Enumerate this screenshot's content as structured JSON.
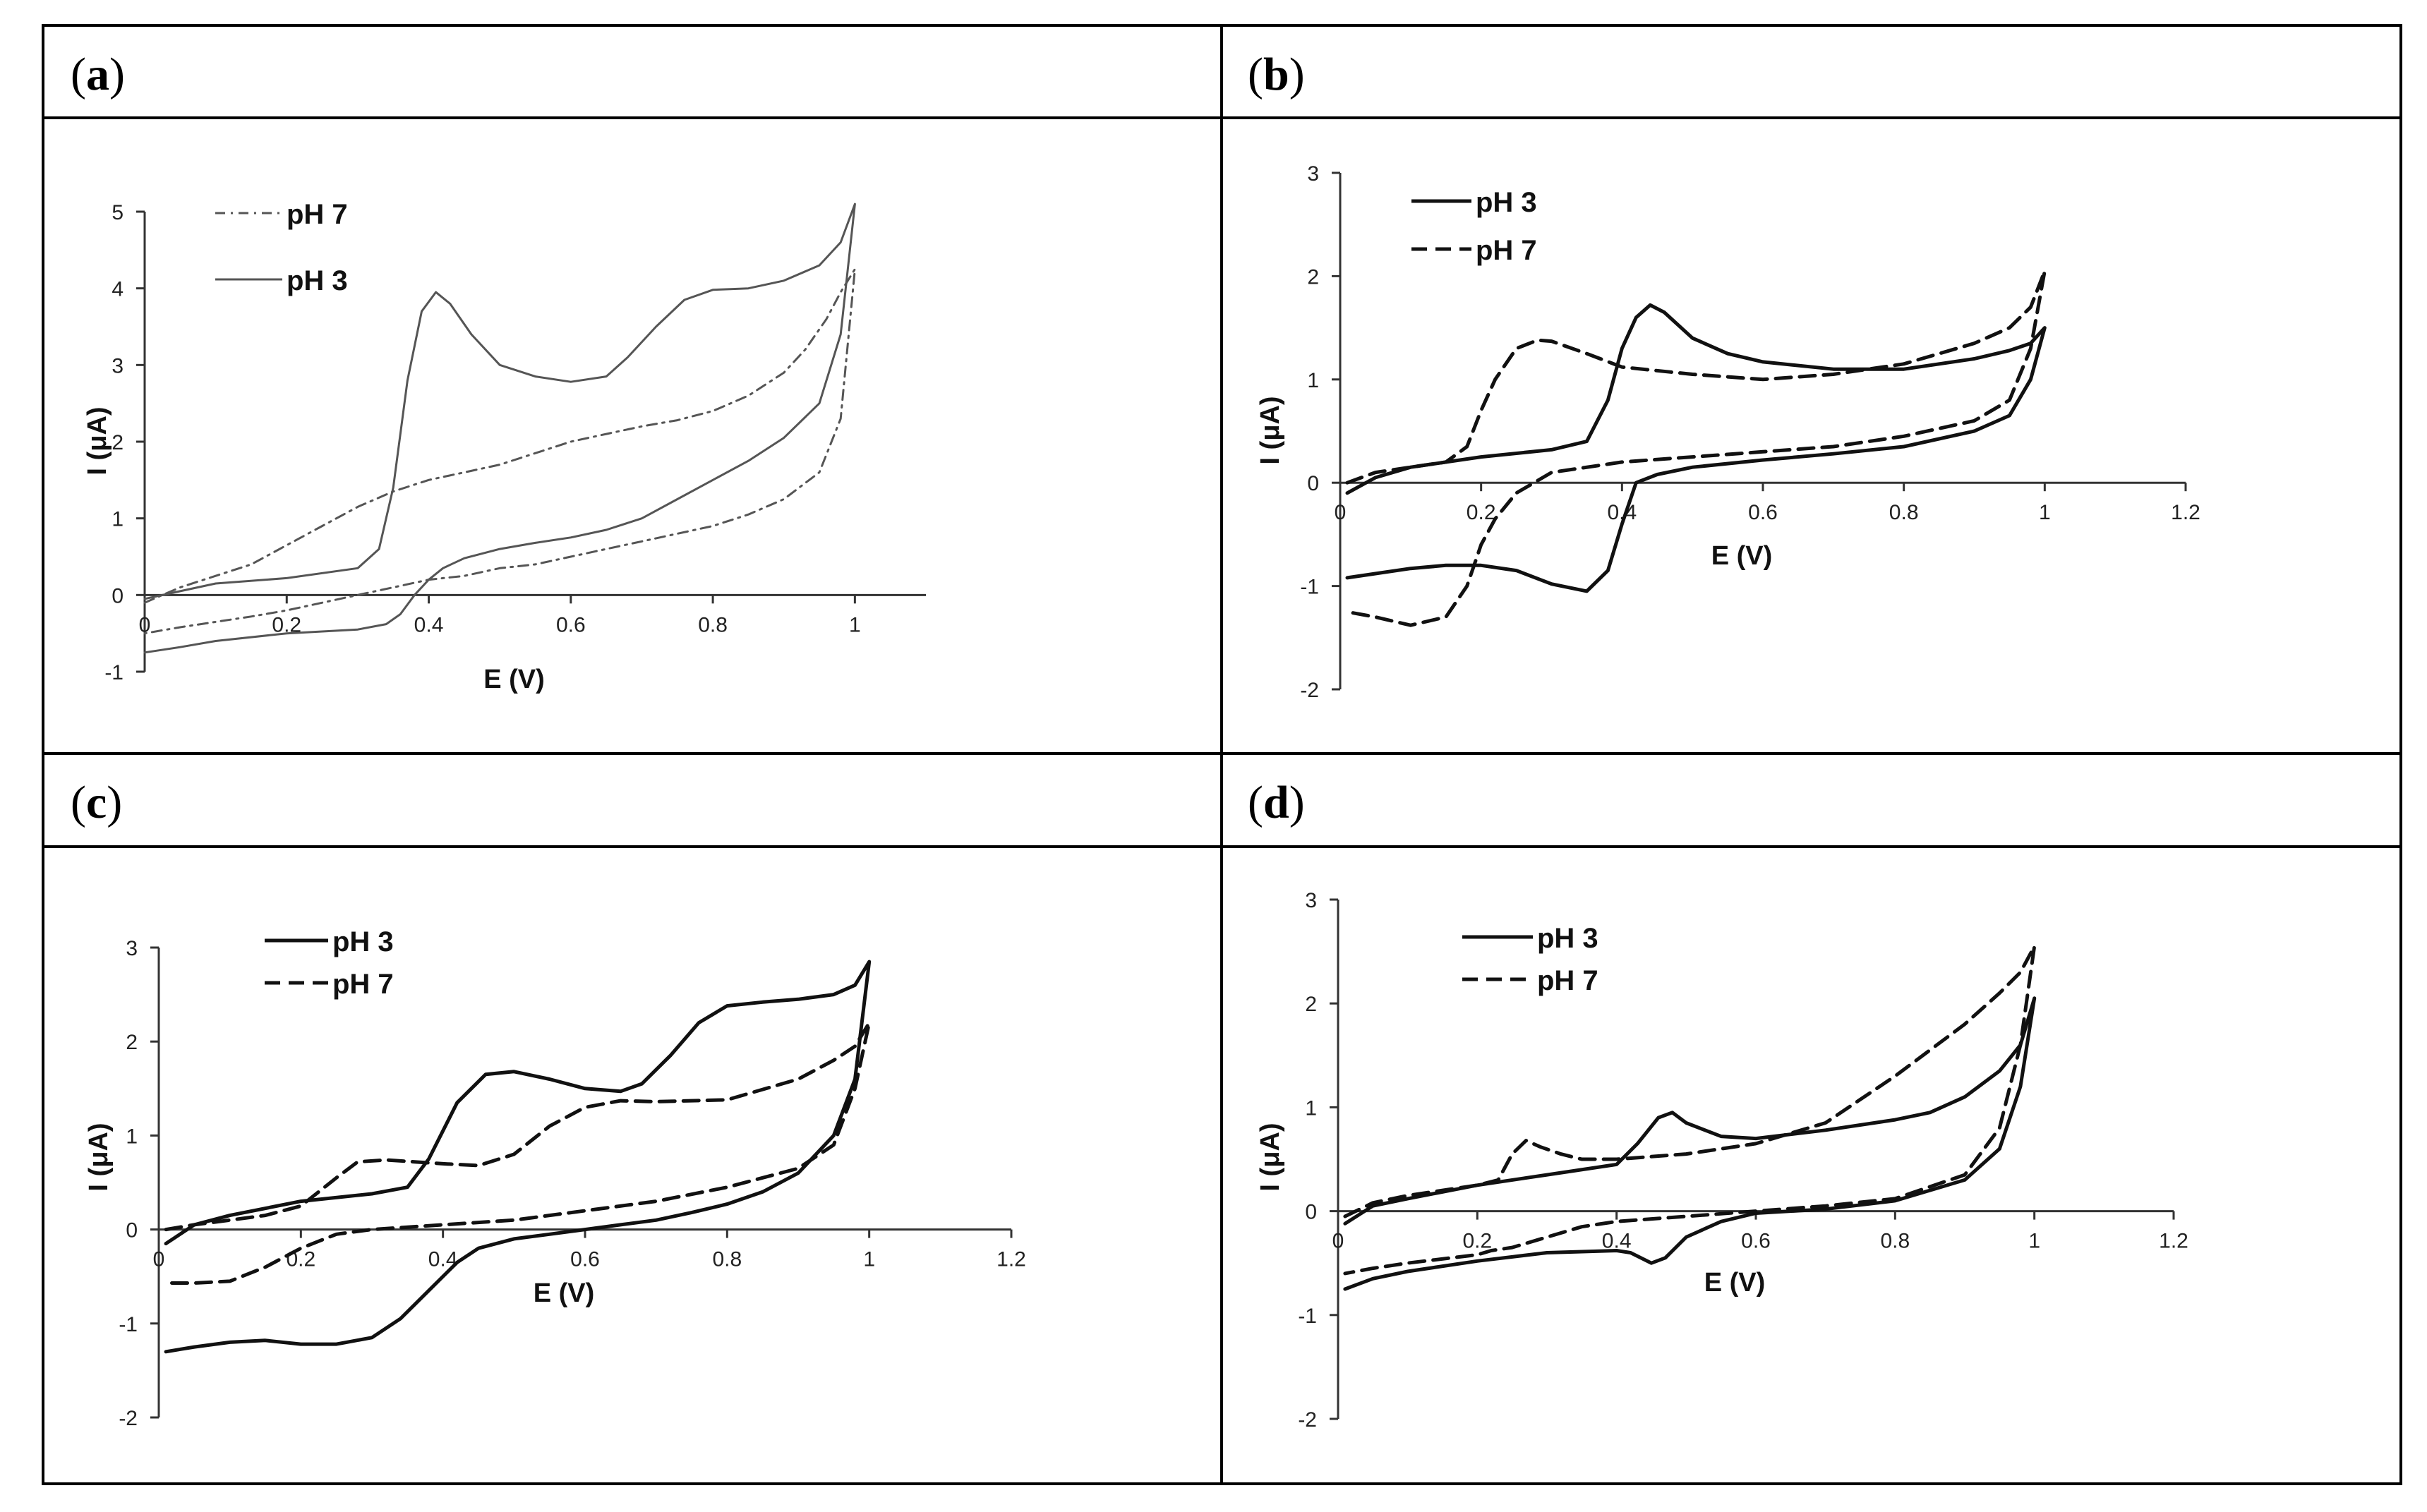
{
  "figure": {
    "panel_labels": [
      "a",
      "b",
      "c",
      "d"
    ]
  },
  "chart_data": [
    {
      "panel": "a",
      "type": "line",
      "title": "",
      "xlabel": "E (V)",
      "ylabel": "I (μA)",
      "xlim": [
        0,
        1.1
      ],
      "ylim": [
        -1,
        5
      ],
      "xticks": [
        0,
        0.2,
        0.4,
        0.6,
        0.8,
        1
      ],
      "xtick_labels": [
        "0",
        "0.2",
        "0.4",
        "0.6",
        "0.8",
        "1"
      ],
      "yticks": [
        -1,
        0,
        1,
        2,
        3,
        4,
        5
      ],
      "ytick_labels": [
        "-1",
        "0",
        "1",
        "2",
        "3",
        "4",
        "5"
      ],
      "axis_crosses_y": 0,
      "legend_position": "top-left",
      "legend_style": "plain",
      "series": [
        {
          "name": "pH 7",
          "style": "dashdot",
          "color": "#555555",
          "x": [
            0,
            0.05,
            0.1,
            0.15,
            0.2,
            0.25,
            0.3,
            0.35,
            0.4,
            0.45,
            0.5,
            0.55,
            0.6,
            0.65,
            0.7,
            0.75,
            0.8,
            0.85,
            0.9,
            0.93,
            0.96,
            0.98,
            1,
            0.98,
            0.95,
            0.9,
            0.85,
            0.8,
            0.75,
            0.7,
            0.65,
            0.6,
            0.55,
            0.5,
            0.45,
            0.4,
            0.35,
            0.3,
            0.25,
            0.2,
            0.15,
            0.1,
            0.05,
            0
          ],
          "y": [
            -0.1,
            0.1,
            0.25,
            0.4,
            0.65,
            0.9,
            1.15,
            1.35,
            1.5,
            1.6,
            1.7,
            1.85,
            2.0,
            2.1,
            2.2,
            2.28,
            2.4,
            2.6,
            2.9,
            3.2,
            3.6,
            3.95,
            4.25,
            2.3,
            1.6,
            1.25,
            1.05,
            0.9,
            0.8,
            0.7,
            0.6,
            0.5,
            0.4,
            0.35,
            0.25,
            0.2,
            0.1,
            0.0,
            -0.1,
            -0.2,
            -0.28,
            -0.35,
            -0.42,
            -0.5
          ]
        },
        {
          "name": "pH 3",
          "style": "solid",
          "color": "#555555",
          "x": [
            0,
            0.05,
            0.1,
            0.2,
            0.3,
            0.33,
            0.35,
            0.37,
            0.39,
            0.41,
            0.43,
            0.46,
            0.5,
            0.55,
            0.6,
            0.65,
            0.68,
            0.72,
            0.76,
            0.8,
            0.85,
            0.9,
            0.95,
            0.98,
            1,
            0.98,
            0.95,
            0.9,
            0.85,
            0.8,
            0.75,
            0.7,
            0.65,
            0.6,
            0.55,
            0.5,
            0.45,
            0.42,
            0.4,
            0.38,
            0.36,
            0.34,
            0.3,
            0.2,
            0.1,
            0.05,
            0
          ],
          "y": [
            -0.05,
            0.05,
            0.15,
            0.22,
            0.35,
            0.6,
            1.4,
            2.8,
            3.7,
            3.95,
            3.8,
            3.4,
            3.0,
            2.85,
            2.78,
            2.85,
            3.1,
            3.5,
            3.85,
            3.98,
            4.0,
            4.1,
            4.3,
            4.6,
            5.1,
            3.4,
            2.5,
            2.05,
            1.75,
            1.5,
            1.25,
            1.0,
            0.85,
            0.75,
            0.68,
            0.6,
            0.48,
            0.35,
            0.2,
            0.0,
            -0.25,
            -0.38,
            -0.45,
            -0.5,
            -0.6,
            -0.68,
            -0.75
          ]
        }
      ]
    },
    {
      "panel": "b",
      "type": "line",
      "title": "",
      "xlabel": "E (V)",
      "ylabel": "I (μA)",
      "xlim": [
        0,
        1.2
      ],
      "ylim": [
        -2,
        3
      ],
      "xticks": [
        0,
        0.2,
        0.4,
        0.6,
        0.8,
        1,
        1.2
      ],
      "xtick_labels": [
        "0",
        "0.2",
        "0.4",
        "0.6",
        "0.8",
        "1",
        "1.2"
      ],
      "yticks": [
        -2,
        -1,
        0,
        1,
        2,
        3
      ],
      "ytick_labels": [
        "-2",
        "-1",
        "0",
        "1",
        "2",
        "3"
      ],
      "axis_crosses_y": 0,
      "legend_position": "top-left",
      "legend_style": "bold",
      "series": [
        {
          "name": "pH 3",
          "style": "solid",
          "color": "#111111",
          "x": [
            0.01,
            0.05,
            0.1,
            0.2,
            0.3,
            0.35,
            0.38,
            0.4,
            0.42,
            0.44,
            0.46,
            0.5,
            0.55,
            0.6,
            0.7,
            0.8,
            0.9,
            0.95,
            0.98,
            1.0,
            0.98,
            0.95,
            0.9,
            0.8,
            0.7,
            0.6,
            0.5,
            0.45,
            0.42,
            0.4,
            0.38,
            0.35,
            0.3,
            0.25,
            0.2,
            0.15,
            0.1,
            0.05,
            0.01
          ],
          "y": [
            -0.1,
            0.05,
            0.15,
            0.25,
            0.32,
            0.4,
            0.8,
            1.3,
            1.6,
            1.72,
            1.65,
            1.4,
            1.25,
            1.17,
            1.1,
            1.1,
            1.2,
            1.28,
            1.35,
            1.5,
            1.0,
            0.65,
            0.5,
            0.35,
            0.28,
            0.22,
            0.15,
            0.08,
            0.0,
            -0.4,
            -0.85,
            -1.05,
            -0.98,
            -0.85,
            -0.8,
            -0.8,
            -0.83,
            -0.88,
            -0.92
          ]
        },
        {
          "name": "pH 7",
          "style": "dashed",
          "color": "#111111",
          "x": [
            0.01,
            0.05,
            0.1,
            0.15,
            0.18,
            0.2,
            0.22,
            0.25,
            0.28,
            0.3,
            0.35,
            0.4,
            0.5,
            0.6,
            0.7,
            0.8,
            0.9,
            0.95,
            0.98,
            1.0,
            0.98,
            0.95,
            0.9,
            0.8,
            0.7,
            0.6,
            0.5,
            0.4,
            0.3,
            0.25,
            0.22,
            0.2,
            0.18,
            0.15,
            0.1,
            0.05,
            0.01
          ],
          "y": [
            0.0,
            0.1,
            0.15,
            0.2,
            0.35,
            0.7,
            1.0,
            1.3,
            1.38,
            1.37,
            1.25,
            1.12,
            1.05,
            1.0,
            1.05,
            1.15,
            1.35,
            1.5,
            1.7,
            2.05,
            1.3,
            0.8,
            0.6,
            0.45,
            0.35,
            0.3,
            0.25,
            0.2,
            0.1,
            -0.1,
            -0.35,
            -0.6,
            -1.0,
            -1.3,
            -1.38,
            -1.3,
            -1.25
          ]
        }
      ]
    },
    {
      "panel": "c",
      "type": "line",
      "title": "",
      "xlabel": "E (V)",
      "ylabel": "I (μA)",
      "xlim": [
        0,
        1.2
      ],
      "ylim": [
        -2,
        3
      ],
      "xticks": [
        0,
        0.2,
        0.4,
        0.6,
        0.8,
        1,
        1.2
      ],
      "xtick_labels": [
        "0",
        "0.2",
        "0.4",
        "0.6",
        "0.8",
        "1",
        "1.2"
      ],
      "yticks": [
        -2,
        -1,
        0,
        1,
        2,
        3
      ],
      "ytick_labels": [
        "-2",
        "-1",
        "0",
        "1",
        "2",
        "3"
      ],
      "axis_crosses_y": 0,
      "legend_position": "top-left",
      "legend_style": "bold",
      "series": [
        {
          "name": "pH 3",
          "style": "solid",
          "color": "#111111",
          "x": [
            0.01,
            0.05,
            0.1,
            0.2,
            0.3,
            0.35,
            0.38,
            0.42,
            0.46,
            0.5,
            0.55,
            0.6,
            0.65,
            0.68,
            0.72,
            0.76,
            0.8,
            0.85,
            0.9,
            0.95,
            0.98,
            1.0,
            0.98,
            0.95,
            0.9,
            0.85,
            0.8,
            0.75,
            0.7,
            0.65,
            0.6,
            0.55,
            0.5,
            0.45,
            0.42,
            0.38,
            0.34,
            0.3,
            0.25,
            0.2,
            0.15,
            0.1,
            0.05,
            0.01
          ],
          "y": [
            -0.15,
            0.05,
            0.15,
            0.3,
            0.38,
            0.45,
            0.75,
            1.35,
            1.65,
            1.68,
            1.6,
            1.5,
            1.47,
            1.55,
            1.85,
            2.2,
            2.38,
            2.42,
            2.45,
            2.5,
            2.6,
            2.85,
            1.6,
            1.0,
            0.6,
            0.4,
            0.27,
            0.18,
            0.1,
            0.05,
            0.0,
            -0.05,
            -0.1,
            -0.2,
            -0.35,
            -0.65,
            -0.95,
            -1.15,
            -1.22,
            -1.22,
            -1.18,
            -1.2,
            -1.25,
            -1.3
          ]
        },
        {
          "name": "pH 7",
          "style": "dashed",
          "color": "#111111",
          "x": [
            0.01,
            0.05,
            0.1,
            0.15,
            0.2,
            0.25,
            0.28,
            0.32,
            0.36,
            0.4,
            0.45,
            0.5,
            0.55,
            0.6,
            0.65,
            0.7,
            0.8,
            0.9,
            0.95,
            0.98,
            1.0,
            0.98,
            0.95,
            0.9,
            0.8,
            0.7,
            0.6,
            0.5,
            0.4,
            0.3,
            0.25,
            0.2,
            0.15,
            0.1,
            0.05,
            0.01
          ],
          "y": [
            0.0,
            0.05,
            0.1,
            0.15,
            0.25,
            0.55,
            0.72,
            0.74,
            0.72,
            0.7,
            0.68,
            0.8,
            1.1,
            1.3,
            1.37,
            1.36,
            1.38,
            1.6,
            1.8,
            1.95,
            2.2,
            1.5,
            0.9,
            0.65,
            0.45,
            0.3,
            0.2,
            0.1,
            0.05,
            0.0,
            -0.05,
            -0.2,
            -0.4,
            -0.55,
            -0.57,
            -0.57
          ]
        }
      ]
    },
    {
      "panel": "d",
      "type": "line",
      "title": "",
      "xlabel": "E (V)",
      "ylabel": "I (μA)",
      "xlim": [
        0,
        1.2
      ],
      "ylim": [
        -2,
        3
      ],
      "xticks": [
        0,
        0.2,
        0.4,
        0.6,
        0.8,
        1,
        1.2
      ],
      "xtick_labels": [
        "0",
        "0.2",
        "0.4",
        "0.6",
        "0.8",
        "1",
        "1.2"
      ],
      "yticks": [
        -2,
        -1,
        0,
        1,
        2,
        3
      ],
      "ytick_labels": [
        "-2",
        "-1",
        "0",
        "1",
        "2",
        "3"
      ],
      "axis_crosses_y": 0,
      "legend_position": "top-left",
      "legend_style": "bold",
      "series": [
        {
          "name": "pH 3",
          "style": "solid",
          "color": "#111111",
          "x": [
            0.01,
            0.05,
            0.1,
            0.2,
            0.3,
            0.4,
            0.43,
            0.46,
            0.48,
            0.5,
            0.55,
            0.6,
            0.7,
            0.8,
            0.85,
            0.9,
            0.95,
            0.98,
            1.0,
            0.98,
            0.95,
            0.9,
            0.8,
            0.7,
            0.6,
            0.55,
            0.5,
            0.47,
            0.45,
            0.42,
            0.4,
            0.3,
            0.2,
            0.1,
            0.05,
            0.01
          ],
          "y": [
            -0.12,
            0.05,
            0.12,
            0.25,
            0.35,
            0.45,
            0.65,
            0.9,
            0.95,
            0.85,
            0.72,
            0.7,
            0.78,
            0.88,
            0.95,
            1.1,
            1.35,
            1.6,
            2.05,
            1.2,
            0.6,
            0.3,
            0.1,
            0.02,
            -0.02,
            -0.1,
            -0.25,
            -0.45,
            -0.5,
            -0.4,
            -0.38,
            -0.4,
            -0.48,
            -0.58,
            -0.65,
            -0.75
          ]
        },
        {
          "name": "pH 7",
          "style": "dashed",
          "color": "#111111",
          "x": [
            0.01,
            0.05,
            0.1,
            0.2,
            0.23,
            0.25,
            0.27,
            0.29,
            0.32,
            0.35,
            0.4,
            0.5,
            0.6,
            0.7,
            0.8,
            0.9,
            0.95,
            0.98,
            1.0,
            0.98,
            0.95,
            0.9,
            0.8,
            0.7,
            0.6,
            0.5,
            0.4,
            0.35,
            0.3,
            0.25,
            0.22,
            0.2,
            0.1,
            0.05,
            0.01
          ],
          "y": [
            -0.05,
            0.08,
            0.15,
            0.25,
            0.3,
            0.55,
            0.68,
            0.62,
            0.55,
            0.5,
            0.5,
            0.55,
            0.65,
            0.85,
            1.3,
            1.8,
            2.1,
            2.3,
            2.55,
            1.6,
            0.8,
            0.35,
            0.12,
            0.05,
            0.0,
            -0.05,
            -0.1,
            -0.15,
            -0.25,
            -0.35,
            -0.38,
            -0.42,
            -0.5,
            -0.55,
            -0.6
          ]
        }
      ]
    }
  ]
}
